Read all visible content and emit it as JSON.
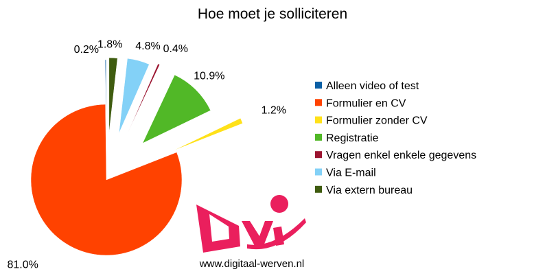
{
  "chart_data": {
    "type": "pie",
    "title": "Hoe moet je solliciteren",
    "slices": [
      {
        "label": "Alleen video of test",
        "value": 0.2,
        "display": "0.2%",
        "color": "#0b5fa5"
      },
      {
        "label": "Formulier en CV",
        "value": 81.0,
        "display": "81.0%",
        "color": "#ff4200"
      },
      {
        "label": "Formulier zonder CV",
        "value": 1.2,
        "display": "1.2%",
        "color": "#ffe119"
      },
      {
        "label": "Registratie",
        "value": 10.9,
        "display": "10.9%",
        "color": "#51b827"
      },
      {
        "label": "Vragen enkel enkele gegevens",
        "value": 0.4,
        "display": "0.4%",
        "color": "#9b1430"
      },
      {
        "label": "Via E-mail",
        "value": 4.8,
        "display": "4.8%",
        "color": "#83d1f7"
      },
      {
        "label": "Via extern bureau",
        "value": 1.8,
        "display": "1.8%",
        "color": "#3f5c10"
      }
    ],
    "exploded": true,
    "legend_position": "right"
  },
  "logo": {
    "text": "Dvi",
    "color": "#ea1f5d"
  },
  "footer": {
    "url": "www.digitaal-werven.nl"
  }
}
